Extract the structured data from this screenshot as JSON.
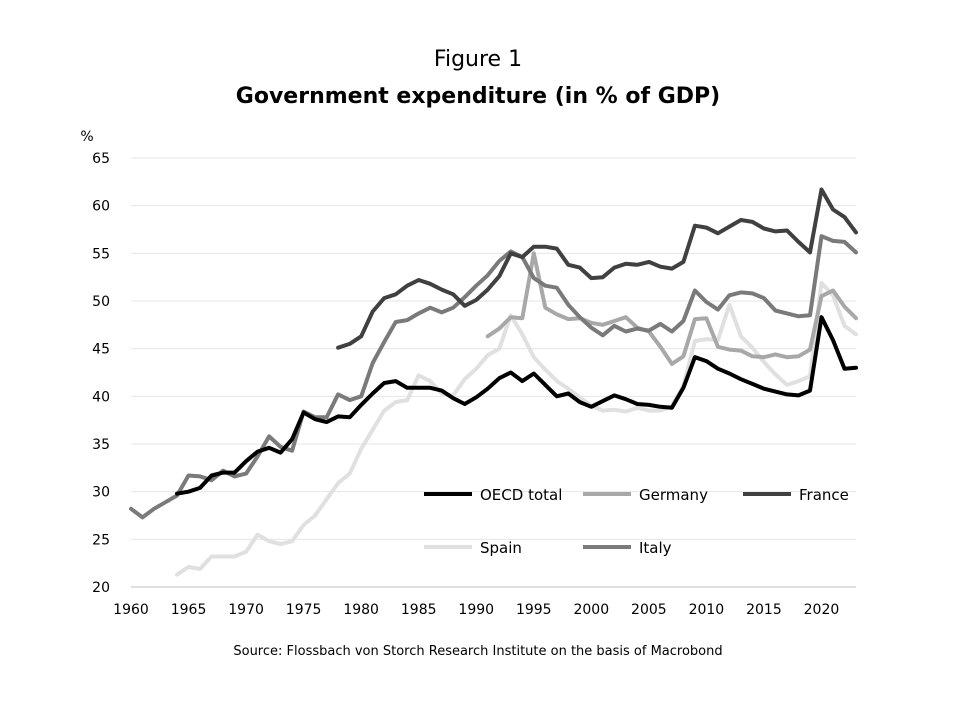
{
  "figure_label": "Figure 1",
  "source": "Source: Flossbach von Storch Research Institute on the basis of Macrobond",
  "chart_data": {
    "type": "line",
    "title": "Government expenditure (in % of GDP)",
    "xlabel": "",
    "ylabel": "%",
    "xlim": [
      1960,
      2023
    ],
    "ylim": [
      20,
      65
    ],
    "xticks": [
      1960,
      1965,
      1970,
      1975,
      1980,
      1985,
      1990,
      1995,
      2000,
      2005,
      2010,
      2015,
      2020
    ],
    "yticks": [
      20,
      25,
      30,
      35,
      40,
      45,
      50,
      55,
      60,
      65
    ],
    "grid": "horizontal",
    "legend_position": "bottom-right inside plot",
    "series": [
      {
        "name": "Spain",
        "color": "#e0e0e0",
        "x": [
          1964,
          1965,
          1966,
          1967,
          1968,
          1969,
          1970,
          1971,
          1972,
          1973,
          1974,
          1975,
          1976,
          1977,
          1978,
          1979,
          1980,
          1981,
          1982,
          1983,
          1984,
          1985,
          1986,
          1987,
          1988,
          1989,
          1990,
          1991,
          1992,
          1993,
          1994,
          1995,
          1996,
          1997,
          1998,
          1999,
          2000,
          2001,
          2002,
          2003,
          2004,
          2005,
          2006,
          2007,
          2008,
          2009,
          2010,
          2011,
          2012,
          2013,
          2014,
          2015,
          2016,
          2017,
          2018,
          2019,
          2020,
          2021,
          2022,
          2023
        ],
        "values": [
          21.3,
          22.1,
          21.9,
          23.2,
          23.2,
          23.2,
          23.7,
          25.5,
          24.8,
          24.5,
          24.8,
          26.5,
          27.5,
          29.2,
          30.9,
          31.9,
          34.5,
          36.5,
          38.5,
          39.4,
          39.6,
          42.2,
          41.6,
          40.3,
          40.1,
          41.8,
          42.9,
          44.3,
          45.0,
          48.5,
          46.5,
          44.1,
          42.8,
          41.6,
          40.8,
          39.9,
          39.0,
          38.5,
          38.6,
          38.4,
          38.8,
          38.5,
          38.5,
          39.0,
          41.1,
          45.8,
          46.0,
          45.9,
          49.6,
          46.3,
          45.1,
          43.6,
          42.3,
          41.2,
          41.6,
          42.1,
          51.9,
          50.6,
          47.4,
          46.5
        ]
      },
      {
        "name": "Germany",
        "color": "#a8a8a8",
        "x": [
          1991,
          1992,
          1993,
          1994,
          1995,
          1996,
          1997,
          1998,
          1999,
          2000,
          2001,
          2002,
          2003,
          2004,
          2005,
          2006,
          2007,
          2008,
          2009,
          2010,
          2011,
          2012,
          2013,
          2014,
          2015,
          2016,
          2017,
          2018,
          2019,
          2020,
          2021,
          2022,
          2023
        ],
        "values": [
          46.3,
          47.1,
          48.3,
          48.2,
          55.0,
          49.3,
          48.6,
          48.1,
          48.2,
          47.7,
          47.5,
          47.9,
          48.3,
          47.2,
          46.8,
          45.2,
          43.4,
          44.2,
          48.1,
          48.2,
          45.2,
          44.9,
          44.8,
          44.2,
          44.1,
          44.4,
          44.1,
          44.2,
          44.9,
          50.5,
          51.1,
          49.4,
          48.2
        ]
      },
      {
        "name": "Italy",
        "color": "#7a7a7a",
        "x": [
          1960,
          1961,
          1962,
          1963,
          1964,
          1965,
          1966,
          1967,
          1968,
          1969,
          1970,
          1971,
          1972,
          1973,
          1974,
          1975,
          1976,
          1977,
          1978,
          1979,
          1980,
          1981,
          1982,
          1983,
          1984,
          1985,
          1986,
          1987,
          1988,
          1989,
          1990,
          1991,
          1992,
          1993,
          1994,
          1995,
          1996,
          1997,
          1998,
          1999,
          2000,
          2001,
          2002,
          2003,
          2004,
          2005,
          2006,
          2007,
          2008,
          2009,
          2010,
          2011,
          2012,
          2013,
          2014,
          2015,
          2016,
          2017,
          2018,
          2019,
          2020,
          2021,
          2022,
          2023
        ],
        "values": [
          28.2,
          27.3,
          28.2,
          28.9,
          29.6,
          31.7,
          31.6,
          31.2,
          32.2,
          31.6,
          31.9,
          33.7,
          35.8,
          34.7,
          34.3,
          38.4,
          37.8,
          37.8,
          40.2,
          39.6,
          40.0,
          43.5,
          45.7,
          47.8,
          48.0,
          48.7,
          49.3,
          48.8,
          49.3,
          50.4,
          51.6,
          52.7,
          54.2,
          55.2,
          54.6,
          52.4,
          51.6,
          51.4,
          49.6,
          48.3,
          47.2,
          46.4,
          47.4,
          46.8,
          47.1,
          46.9,
          47.6,
          46.8,
          47.9,
          51.1,
          49.9,
          49.1,
          50.6,
          50.9,
          50.8,
          50.3,
          49.0,
          48.7,
          48.4,
          48.5,
          56.8,
          56.3,
          56.2,
          55.1
        ]
      },
      {
        "name": "France",
        "color": "#404040",
        "x": [
          1978,
          1979,
          1980,
          1981,
          1982,
          1983,
          1984,
          1985,
          1986,
          1987,
          1988,
          1989,
          1990,
          1991,
          1992,
          1993,
          1994,
          1995,
          1996,
          1997,
          1998,
          1999,
          2000,
          2001,
          2002,
          2003,
          2004,
          2005,
          2006,
          2007,
          2008,
          2009,
          2010,
          2011,
          2012,
          2013,
          2014,
          2015,
          2016,
          2017,
          2018,
          2019,
          2020,
          2021,
          2022,
          2023
        ],
        "values": [
          45.1,
          45.5,
          46.3,
          48.9,
          50.3,
          50.7,
          51.6,
          52.2,
          51.8,
          51.2,
          50.7,
          49.5,
          50.1,
          51.2,
          52.6,
          55.0,
          54.6,
          55.7,
          55.7,
          55.5,
          53.8,
          53.5,
          52.4,
          52.5,
          53.5,
          53.9,
          53.8,
          54.1,
          53.6,
          53.4,
          54.1,
          57.9,
          57.7,
          57.1,
          57.8,
          58.5,
          58.3,
          57.6,
          57.3,
          57.4,
          56.2,
          55.1,
          61.7,
          59.6,
          58.8,
          57.2
        ]
      },
      {
        "name": "OECD total",
        "color": "#000000",
        "x": [
          1964,
          1965,
          1966,
          1967,
          1968,
          1969,
          1970,
          1971,
          1972,
          1973,
          1974,
          1975,
          1976,
          1977,
          1978,
          1979,
          1980,
          1981,
          1982,
          1983,
          1984,
          1985,
          1986,
          1987,
          1988,
          1989,
          1990,
          1991,
          1992,
          1993,
          1994,
          1995,
          1996,
          1997,
          1998,
          1999,
          2000,
          2001,
          2002,
          2003,
          2004,
          2005,
          2006,
          2007,
          2008,
          2009,
          2010,
          2011,
          2012,
          2013,
          2014,
          2015,
          2016,
          2017,
          2018,
          2019,
          2020,
          2021,
          2022,
          2023
        ],
        "values": [
          29.8,
          30.0,
          30.4,
          31.7,
          32.0,
          32.0,
          33.2,
          34.2,
          34.6,
          34.1,
          35.5,
          38.3,
          37.6,
          37.3,
          37.9,
          37.8,
          39.1,
          40.3,
          41.4,
          41.6,
          40.9,
          40.9,
          40.9,
          40.6,
          39.8,
          39.2,
          39.9,
          40.8,
          41.9,
          42.5,
          41.6,
          42.4,
          41.2,
          40.0,
          40.3,
          39.4,
          38.9,
          39.5,
          40.1,
          39.7,
          39.2,
          39.1,
          38.9,
          38.8,
          40.9,
          44.1,
          43.7,
          42.9,
          42.4,
          41.8,
          41.3,
          40.8,
          40.5,
          40.2,
          40.1,
          40.6,
          48.3,
          45.9,
          42.9,
          43.0
        ]
      }
    ],
    "legend_order": [
      "OECD total",
      "Germany",
      "France",
      "Spain",
      "Italy"
    ]
  }
}
